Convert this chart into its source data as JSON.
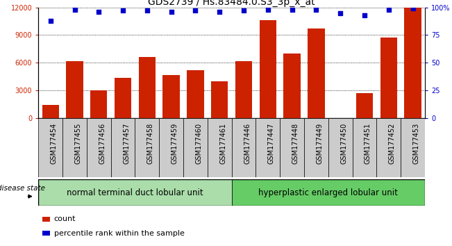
{
  "title": "GDS2739 / Hs.83484.0.S3_3p_x_at",
  "samples": [
    "GSM177454",
    "GSM177455",
    "GSM177456",
    "GSM177457",
    "GSM177458",
    "GSM177459",
    "GSM177460",
    "GSM177461",
    "GSM177446",
    "GSM177447",
    "GSM177448",
    "GSM177449",
    "GSM177450",
    "GSM177451",
    "GSM177452",
    "GSM177453"
  ],
  "counts": [
    1400,
    6200,
    3000,
    4400,
    6600,
    4700,
    5200,
    4000,
    6200,
    10600,
    7000,
    9700,
    0,
    2700,
    8700,
    12000
  ],
  "percentiles": [
    88,
    98,
    96,
    97,
    97,
    96,
    97,
    96,
    97,
    98,
    98,
    98,
    95,
    93,
    98,
    99
  ],
  "group1_label": "normal terminal duct lobular unit",
  "group2_label": "hyperplastic enlarged lobular unit",
  "group1_count": 8,
  "group2_count": 8,
  "bar_color": "#cc2200",
  "dot_color": "#0000cc",
  "group1_color": "#aaddaa",
  "group2_color": "#66cc66",
  "ylim_left": [
    0,
    12000
  ],
  "ylim_right": [
    0,
    100
  ],
  "yticks_left": [
    0,
    3000,
    6000,
    9000,
    12000
  ],
  "ytick_labels_right": [
    "0",
    "25",
    "50",
    "75",
    "100%"
  ],
  "yticks_right": [
    0,
    25,
    50,
    75,
    100
  ],
  "legend_count_label": "count",
  "legend_pct_label": "percentile rank within the sample",
  "disease_state_label": "disease state",
  "title_fontsize": 10,
  "tick_fontsize": 7,
  "bar_width": 0.7,
  "xtick_bg_color": "#cccccc"
}
